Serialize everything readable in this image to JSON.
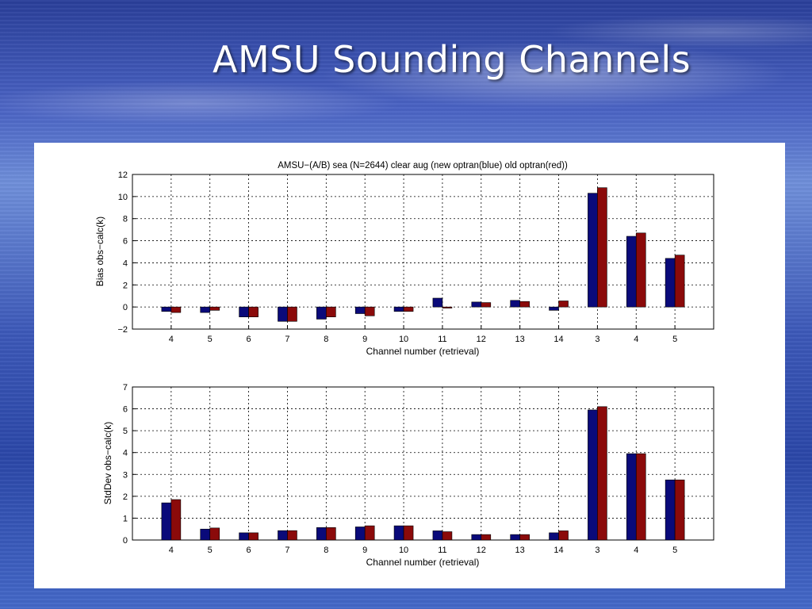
{
  "slide": {
    "title": "AMSU Sounding Channels"
  },
  "colors": {
    "new_optran": "#0a0a7a",
    "old_optran": "#8b0a0a",
    "grid": "#000000"
  },
  "chart_data": [
    {
      "type": "bar",
      "title": "AMSU−(A/B) sea (N=2644) clear aug (new optran(blue) old optran(red))",
      "xlabel": "Channel number (retrieval)",
      "ylabel": "Bias obs−calc(k)",
      "categories": [
        "4",
        "5",
        "6",
        "7",
        "8",
        "9",
        "10",
        "11",
        "12",
        "13",
        "14",
        "3",
        "4",
        "5"
      ],
      "ylim": [
        -2,
        12
      ],
      "yticks": [
        -2,
        0,
        2,
        4,
        6,
        8,
        10,
        12
      ],
      "ytick_labels": [
        "−2",
        "0",
        "2",
        "4",
        "6",
        "8",
        "10",
        "12"
      ],
      "grid": true,
      "series": [
        {
          "values": [
            -0.4,
            -0.5,
            -0.9,
            -1.3,
            -1.1,
            -0.6,
            -0.4,
            0.8,
            0.45,
            0.6,
            -0.3,
            10.3,
            6.4,
            4.4
          ]
        },
        {
          "values": [
            -0.5,
            -0.3,
            -0.9,
            -1.3,
            -0.9,
            -0.8,
            -0.4,
            -0.1,
            0.4,
            0.5,
            0.55,
            10.8,
            6.7,
            4.7
          ]
        }
      ]
    },
    {
      "type": "bar",
      "title": "",
      "xlabel": "Channel number (retrieval)",
      "ylabel": "StdDev obs−calc(k)",
      "categories": [
        "4",
        "5",
        "6",
        "7",
        "8",
        "9",
        "10",
        "11",
        "12",
        "13",
        "14",
        "3",
        "4",
        "5"
      ],
      "ylim": [
        0,
        7
      ],
      "yticks": [
        0,
        1,
        2,
        3,
        4,
        5,
        6,
        7
      ],
      "ytick_labels": [
        "0",
        "1",
        "2",
        "3",
        "4",
        "5",
        "6",
        "7"
      ],
      "grid": true,
      "series": [
        {
          "values": [
            1.7,
            0.5,
            0.33,
            0.43,
            0.57,
            0.6,
            0.65,
            0.42,
            0.25,
            0.25,
            0.33,
            5.95,
            3.95,
            2.75
          ]
        },
        {
          "values": [
            1.85,
            0.55,
            0.33,
            0.43,
            0.57,
            0.65,
            0.65,
            0.38,
            0.25,
            0.25,
            0.42,
            6.1,
            3.95,
            2.75
          ]
        }
      ]
    }
  ]
}
